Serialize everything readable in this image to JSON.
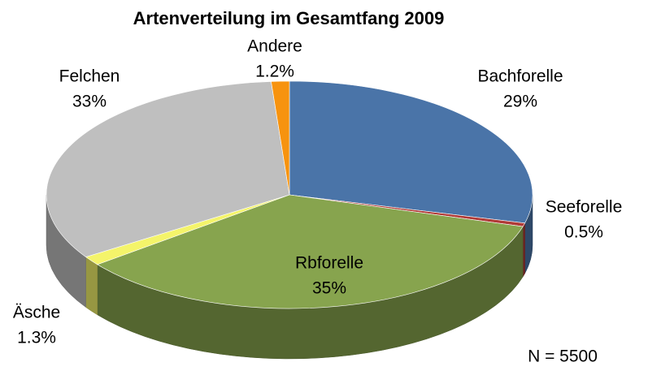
{
  "chart_data": {
    "type": "pie3d",
    "title": "Artenverteilung im Gesamtfang 2009",
    "categories": [
      "Bachforelle",
      "Seeforelle",
      "Rbforelle",
      "Äsche",
      "Felchen",
      "Andere"
    ],
    "values": [
      29,
      0.5,
      35,
      1.3,
      33,
      1.2
    ],
    "value_labels": [
      "29%",
      "0.5%",
      "35%",
      "1.3%",
      "33%",
      "1.2%"
    ],
    "colors": [
      "#4a74a8",
      "#b03a37",
      "#87a44e",
      "#f4f46a",
      "#bfbfbf",
      "#f7930f"
    ],
    "annotation": "N = 5500"
  }
}
